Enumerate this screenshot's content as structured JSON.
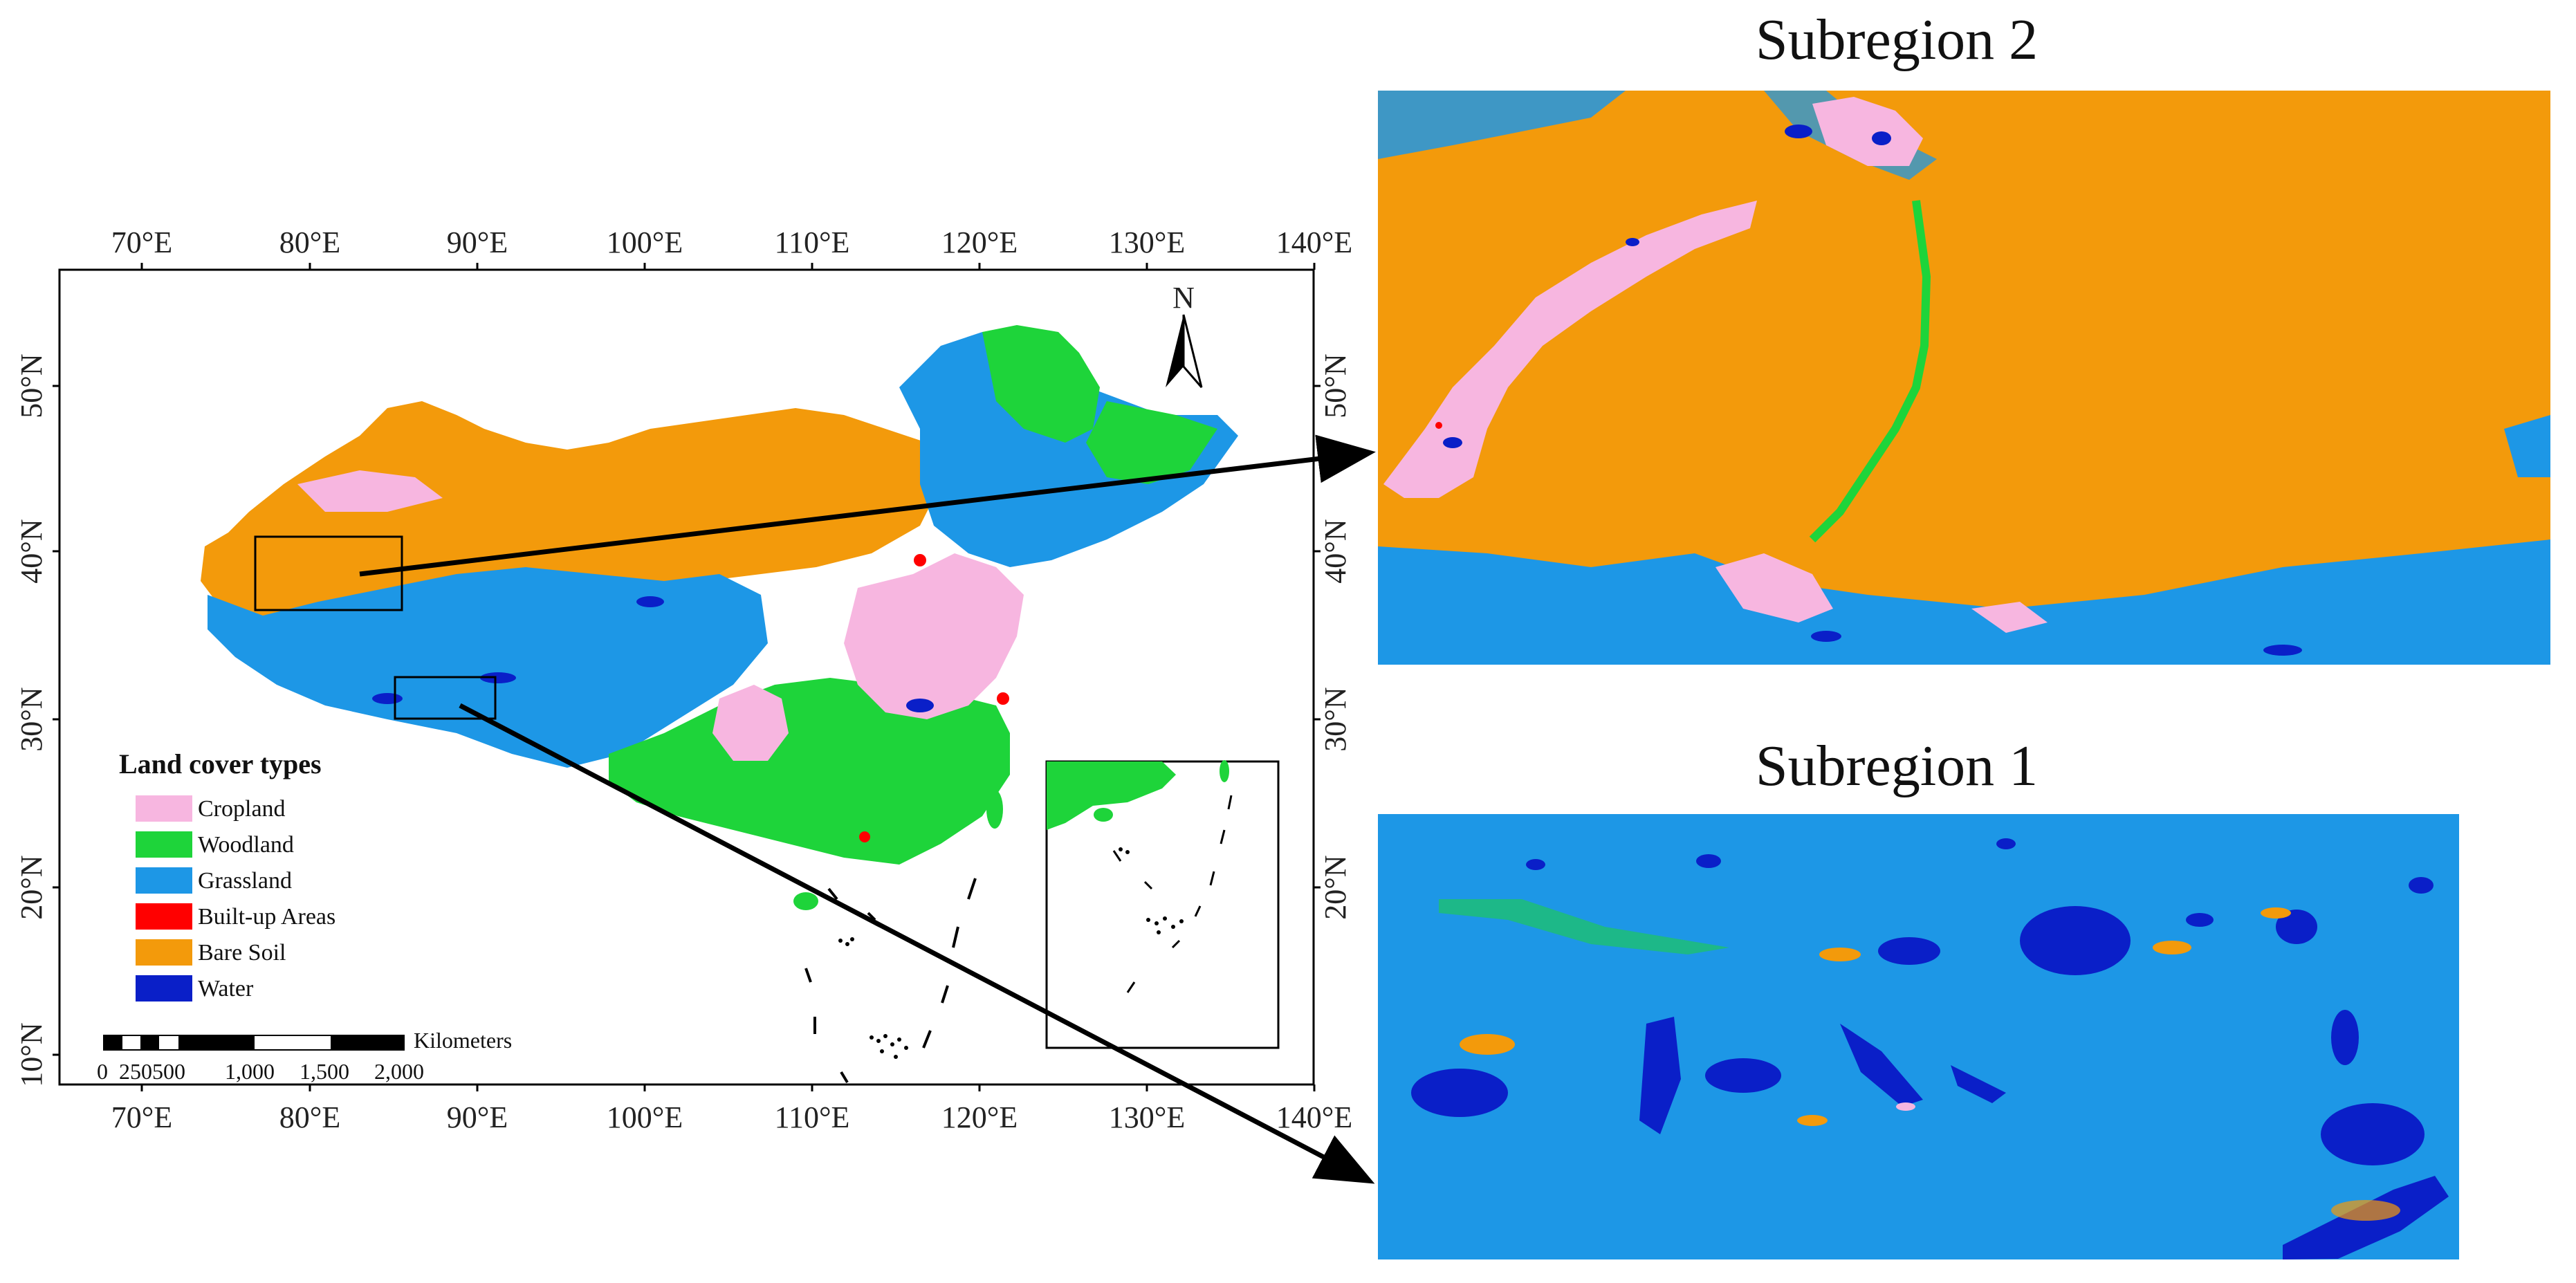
{
  "map": {
    "top_lon_labels": [
      "70°E",
      "80°E",
      "90°E",
      "100°E",
      "110°E",
      "120°E",
      "130°E",
      "140°E"
    ],
    "bottom_lon_labels": [
      "70°E",
      "80°E",
      "90°E",
      "100°E",
      "110°E",
      "120°E",
      "130°E",
      "140°E"
    ],
    "left_lat_labels": [
      "50°N",
      "40°N",
      "30°N",
      "20°N",
      "10°N"
    ],
    "right_lat_labels": [
      "50°N",
      "40°N",
      "30°N",
      "20°N"
    ],
    "north_label": "N",
    "legend": {
      "title": "Land cover types",
      "items": [
        {
          "label": "Cropland",
          "color": "#f7b6e0"
        },
        {
          "label": "Woodland",
          "color": "#1ed43a"
        },
        {
          "label": "Grassland",
          "color": "#1d97e6"
        },
        {
          "label": "Built-up Areas",
          "color": "#ff0000"
        },
        {
          "label": "Bare Soil",
          "color": "#f39a0b"
        },
        {
          "label": "Water",
          "color": "#0a1fc8"
        }
      ]
    },
    "scale_bar": {
      "unit": "Kilometers",
      "labels": [
        "0",
        "250500",
        "1,000",
        "1,500",
        "2,000"
      ]
    }
  },
  "subregions": {
    "top_title": "Subregion 2",
    "bottom_title": "Subregion 1"
  },
  "colors": {
    "cropland": "#f7b6e0",
    "woodland": "#1ed43a",
    "grassland": "#1d97e6",
    "builtup": "#ff0000",
    "baresoil": "#f39a0b",
    "water": "#0a1fc8"
  }
}
